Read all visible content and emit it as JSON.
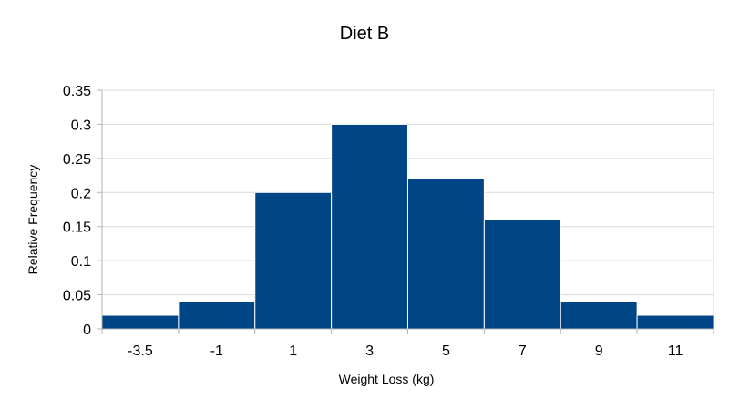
{
  "chart_data": {
    "type": "bar",
    "title": "Diet B",
    "xlabel": "Weight Loss (kg)",
    "ylabel": "Relative Frequency",
    "categories": [
      "-3.5",
      "-1",
      "1",
      "3",
      "5",
      "7",
      "9",
      "11"
    ],
    "values": [
      0.02,
      0.04,
      0.2,
      0.3,
      0.22,
      0.16,
      0.04,
      0.02
    ],
    "ylim": [
      0,
      0.35
    ],
    "yticks": [
      "0",
      "0.05",
      "0.1",
      "0.15",
      "0.2",
      "0.25",
      "0.3",
      "0.35"
    ],
    "grid": true,
    "bar_color": "#004586",
    "grid_color": "#d9d9d9"
  }
}
